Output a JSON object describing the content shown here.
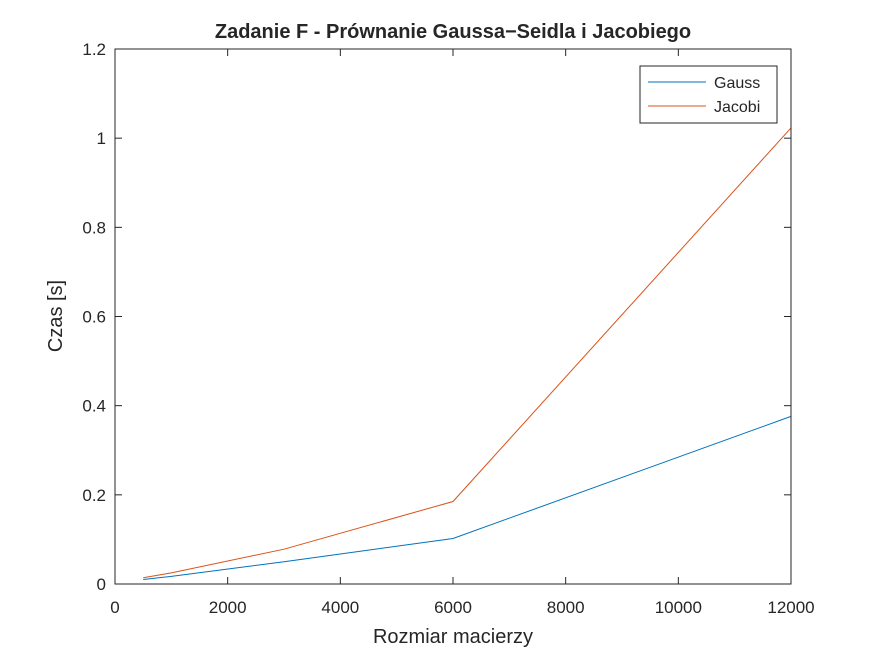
{
  "chart_data": {
    "type": "line",
    "title": "Zadanie F - Prównanie Gaussa−Seidla i Jacobiego",
    "xlabel": "Rozmiar macierzy",
    "ylabel": "Czas [s]",
    "xlim": [
      0,
      12000
    ],
    "ylim": [
      0,
      1.2
    ],
    "xticks": [
      0,
      2000,
      4000,
      6000,
      8000,
      10000,
      12000
    ],
    "xtick_labels": [
      "0",
      "2000",
      "4000",
      "6000",
      "8000",
      "10000",
      "12000"
    ],
    "yticks": [
      0,
      0.2,
      0.4,
      0.6,
      0.8,
      1.0,
      1.2
    ],
    "ytick_labels": [
      "0",
      "0.2",
      "0.4",
      "0.6",
      "0.8",
      "1",
      "1.2"
    ],
    "grid": false,
    "legend_position": "top-right",
    "series": [
      {
        "name": "Gauss",
        "color": "#0072BD",
        "x": [
          500,
          1000,
          3000,
          6000,
          12000
        ],
        "y": [
          0.01,
          0.017,
          0.05,
          0.102,
          0.376
        ]
      },
      {
        "name": "Jacobi",
        "color": "#D95319",
        "x": [
          500,
          1000,
          3000,
          6000,
          12000
        ],
        "y": [
          0.014,
          0.025,
          0.078,
          0.185,
          1.023
        ]
      }
    ]
  }
}
